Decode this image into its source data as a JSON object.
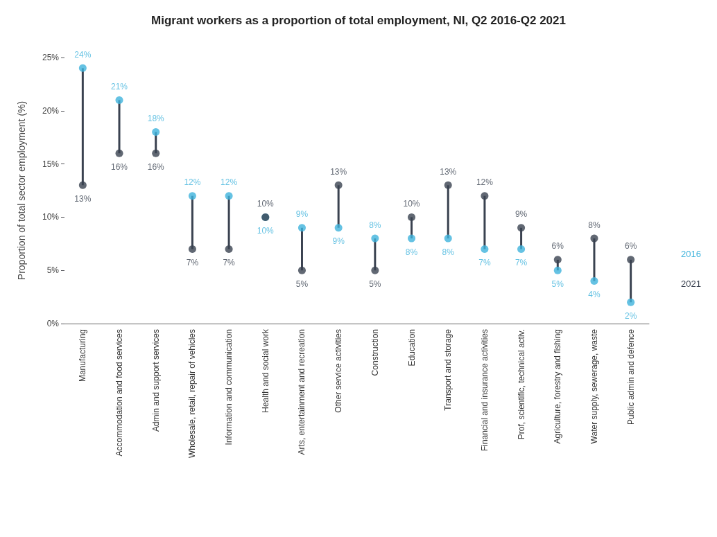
{
  "chart_data": {
    "type": "scatter",
    "title": "Migrant workers as a proportion of total employment, NI, Q2 2016-Q2 2021",
    "ylabel": "Proportion of total sector employment (%)",
    "categories": [
      "Manufacturing",
      "Accommodation and food services",
      "Admin and support services",
      "Wholesale, retail, repair of vehicles",
      "Information and communication",
      "Health and social work",
      "Arts, entertainment and recreation",
      "Other service activities",
      "Construction",
      "Education",
      "Transport and storage",
      "Financial and insurance activities",
      "Prof, scientific, technical activ.",
      "Agriculture, forestry and fishing",
      "Water supply, sewerage, waste",
      "Public admin and defence"
    ],
    "series": [
      {
        "name": "2016",
        "color": "#3fb3dc",
        "values": [
          24,
          21,
          18,
          12,
          12,
          10,
          9,
          9,
          8,
          8,
          8,
          7,
          7,
          5,
          4,
          2
        ],
        "value_labels": [
          "24%",
          "21%",
          "18%",
          "12%",
          "12%",
          "10%",
          "9%",
          "9%",
          "8%",
          "8%",
          "8%",
          "7%",
          "7%",
          "5%",
          "4%",
          "2%"
        ]
      },
      {
        "name": "2021",
        "color": "#3a4250",
        "values": [
          13,
          16,
          16,
          7,
          7,
          10,
          5,
          13,
          5,
          10,
          13,
          12,
          9,
          6,
          8,
          6
        ],
        "value_labels": [
          "13%",
          "16%",
          "16%",
          "7%",
          "7%",
          "10%",
          "5%",
          "13%",
          "5%",
          "10%",
          "13%",
          "12%",
          "9%",
          "6%",
          "8%",
          "6%"
        ]
      }
    ],
    "ylim": [
      0,
      25
    ],
    "yticks": [
      {
        "value": 0,
        "label": "0%"
      },
      {
        "value": 5,
        "label": "5%"
      },
      {
        "value": 10,
        "label": "10%"
      },
      {
        "value": 15,
        "label": "15%"
      },
      {
        "value": 20,
        "label": "20%"
      },
      {
        "value": 25,
        "label": "25%"
      }
    ],
    "grid": false,
    "legend": "right",
    "marker": "circle"
  }
}
